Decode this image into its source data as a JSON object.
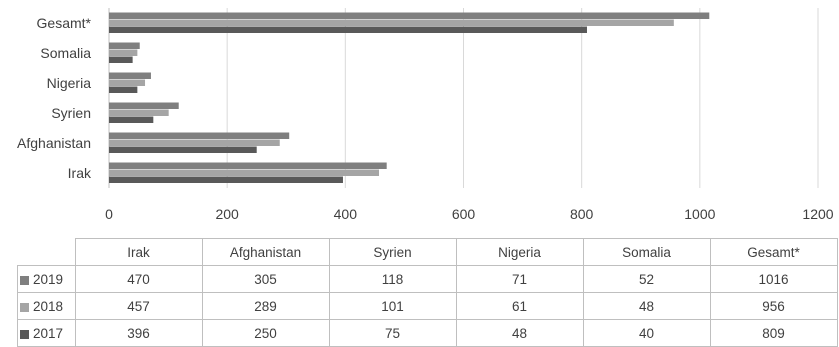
{
  "chart_data": {
    "type": "bar",
    "orientation": "horizontal",
    "categories": [
      "Irak",
      "Afghanistan",
      "Syrien",
      "Nigeria",
      "Somalia",
      "Gesamt*"
    ],
    "series": [
      {
        "name": "2019",
        "color": "#7f7f7f",
        "values": [
          470,
          305,
          118,
          71,
          52,
          1016
        ]
      },
      {
        "name": "2018",
        "color": "#a5a5a5",
        "values": [
          457,
          289,
          101,
          61,
          48,
          956
        ]
      },
      {
        "name": "2017",
        "color": "#595959",
        "values": [
          396,
          250,
          75,
          48,
          40,
          809
        ]
      }
    ],
    "xlim": [
      0,
      1200
    ],
    "xticks": [
      0,
      200,
      400,
      600,
      800,
      1000,
      1200
    ],
    "grid": "vertical",
    "legend": "data-table-below"
  }
}
